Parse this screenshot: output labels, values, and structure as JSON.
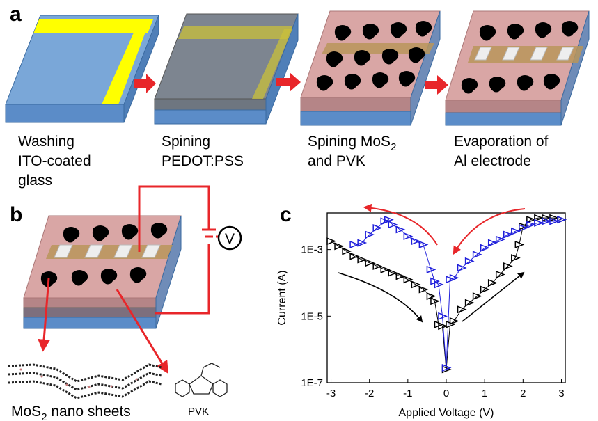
{
  "figure": {
    "panel_a": {
      "letter": "a",
      "steps": [
        {
          "line1": "Washing",
          "line2": "ITO-coated",
          "line3": "glass"
        },
        {
          "line1": "Spining",
          "line2": "PEDOT:PSS",
          "line3": ""
        },
        {
          "line1": "Spining MoS",
          "sub": "2",
          "line2": "and PVK",
          "line3": ""
        },
        {
          "line1": "Evaporation of",
          "line2": "Al electrode",
          "line3": ""
        }
      ]
    },
    "panel_b": {
      "letter": "b",
      "voltmeter": "V",
      "nanosheets_label": "MoS",
      "nanosheets_sub": "2",
      "nanosheets_rest": " nano sheets",
      "pvk_label": "PVK"
    },
    "panel_c": {
      "letter": "c"
    }
  },
  "colors": {
    "glass": "#6f9fd3",
    "glass_dark": "#4f81bd",
    "ito": "#ffff00",
    "pedot": "#7f7f7f",
    "pvk_layer": "#e6b8b7",
    "mos2": "#000000",
    "arrow": "#e8262a",
    "series_black": "#000000",
    "series_blue": "#1f1fdb"
  },
  "chart_data": {
    "type": "scatter",
    "xlabel": "Applied Voltage (V)",
    "ylabel": "Current (A)",
    "xlim": [
      -3.1,
      3.1
    ],
    "ylim_log10": [
      -7,
      -1.9
    ],
    "y_scale": "log",
    "x_ticks": [
      -3,
      -2,
      -1,
      0,
      1,
      2,
      3
    ],
    "y_ticks": [
      "1E-7",
      "1E-5",
      "1E-3"
    ],
    "y_tick_values_log10": [
      -7,
      -5,
      -3
    ],
    "series": [
      {
        "color": "#000000",
        "marker": "triangle",
        "x": [
          -3.0,
          -2.8,
          -2.6,
          -2.4,
          -2.2,
          -2.0,
          -1.8,
          -1.6,
          -1.4,
          -1.2,
          -1.0,
          -0.8,
          -0.6,
          -0.4,
          -0.3,
          -0.2,
          -0.1,
          0.0,
          0.1,
          0.2,
          0.4,
          0.6,
          0.8,
          1.0,
          1.2,
          1.4,
          1.6,
          1.8,
          1.9,
          2.0,
          2.2,
          2.4,
          2.6,
          2.8,
          3.0
        ],
        "y_log10": [
          -2.75,
          -2.9,
          -3.05,
          -3.2,
          -3.3,
          -3.4,
          -3.5,
          -3.6,
          -3.7,
          -3.8,
          -3.9,
          -4.05,
          -4.2,
          -4.4,
          -4.55,
          -5.25,
          -5.3,
          -6.6,
          -5.25,
          -5.15,
          -4.8,
          -4.6,
          -4.4,
          -4.2,
          -4.0,
          -3.75,
          -3.5,
          -3.25,
          -2.85,
          -2.3,
          -2.1,
          -2.05,
          -2.05,
          -2.05,
          -2.1
        ]
      },
      {
        "color": "#1f1fdb",
        "marker": "triangle",
        "x": [
          -2.4,
          -2.2,
          -2.0,
          -1.8,
          -1.6,
          -1.5,
          -1.4,
          -1.2,
          -1.0,
          -0.8,
          -0.6,
          -0.4,
          -0.3,
          -0.2,
          -0.1,
          0.0,
          0.1,
          0.2,
          0.4,
          0.6,
          0.8,
          1.0,
          1.2,
          1.4,
          1.6,
          1.8,
          2.0,
          2.2,
          2.4,
          2.6,
          2.8,
          3.0
        ],
        "y_log10": [
          -2.85,
          -2.8,
          -2.55,
          -2.35,
          -2.15,
          -2.1,
          -2.25,
          -2.4,
          -2.6,
          -2.75,
          -2.85,
          -3.6,
          -3.95,
          -4.05,
          -5.0,
          -6.55,
          -3.9,
          -3.85,
          -3.55,
          -3.35,
          -3.15,
          -2.95,
          -2.8,
          -2.7,
          -2.55,
          -2.45,
          -2.35,
          -2.25,
          -2.2,
          -2.15,
          -2.15,
          -2.1
        ]
      }
    ]
  }
}
